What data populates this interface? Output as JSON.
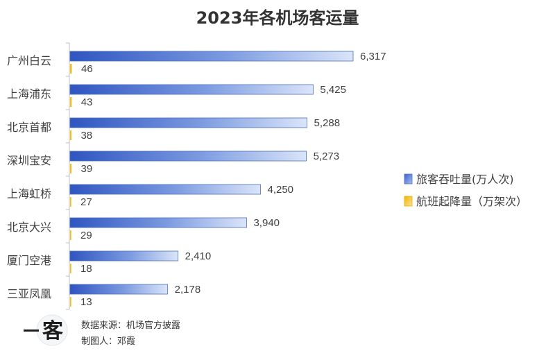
{
  "chart_data": {
    "type": "bar",
    "orientation": "horizontal",
    "title": "2023年各机场客运量",
    "categories": [
      "广州白云",
      "上海浦东",
      "北京首都",
      "深圳宝安",
      "上海虹桥",
      "北京大兴",
      "厦门空港",
      "三亚凤凰"
    ],
    "series": [
      {
        "name": "旅客吞吐量(万人次)",
        "values": [
          6317,
          5425,
          5288,
          5273,
          4250,
          3940,
          2410,
          2178
        ],
        "labels": [
          "6,317",
          "5,425",
          "5,288",
          "5,273",
          "4,250",
          "3,940",
          "2,410",
          "2,178"
        ],
        "color": "#3f6cc7"
      },
      {
        "name": "航班起降量（万架次）",
        "values": [
          46,
          43,
          38,
          39,
          27,
          29,
          18,
          13
        ],
        "labels": [
          "46",
          "43",
          "38",
          "39",
          "27",
          "29",
          "18",
          "13"
        ],
        "color": "#f2c230"
      }
    ],
    "legend_position": "right",
    "grid": false
  },
  "footer": {
    "source": "数据来源：机场官方披露",
    "author": "制图人：邓霞",
    "logo_text": "一客"
  }
}
